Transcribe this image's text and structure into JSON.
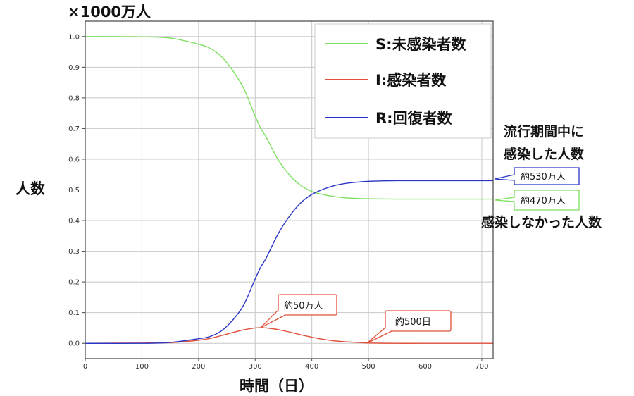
{
  "chart_data": {
    "type": "line",
    "title": "×1000万人",
    "xlabel": "時間（日）",
    "ylabel": "人数",
    "xlim": [
      0,
      720
    ],
    "ylim": [
      -0.05,
      1.05
    ],
    "grid": true,
    "xticks": [
      0,
      100,
      200,
      300,
      400,
      500,
      600,
      700
    ],
    "yticks": [
      0.0,
      0.1,
      0.2,
      0.3,
      0.4,
      0.5,
      0.6,
      0.7,
      0.8,
      0.9,
      1.0
    ],
    "legend_position": "top-right",
    "x": [
      0,
      100,
      150,
      200,
      220,
      240,
      260,
      280,
      300,
      310,
      320,
      340,
      360,
      380,
      400,
      420,
      440,
      460,
      480,
      500,
      550,
      600,
      720
    ],
    "series": [
      {
        "name": "S:未感染者数",
        "color": "#7ee05f",
        "values": [
          1.0,
          0.999,
          0.995,
          0.975,
          0.962,
          0.935,
          0.89,
          0.83,
          0.74,
          0.7,
          0.67,
          0.6,
          0.55,
          0.515,
          0.495,
          0.485,
          0.478,
          0.474,
          0.472,
          0.471,
          0.47,
          0.47,
          0.47
        ]
      },
      {
        "name": "I:感染者数",
        "color": "#e0503a",
        "values": [
          0.0,
          0.001,
          0.002,
          0.01,
          0.016,
          0.025,
          0.035,
          0.044,
          0.05,
          0.051,
          0.05,
          0.045,
          0.037,
          0.028,
          0.02,
          0.013,
          0.008,
          0.005,
          0.003,
          0.001,
          0.0,
          0.0,
          0.0
        ]
      },
      {
        "name": "R:回復者数",
        "color": "#2b36c8",
        "values": [
          0.0,
          0.0,
          0.003,
          0.015,
          0.022,
          0.04,
          0.075,
          0.126,
          0.21,
          0.249,
          0.28,
          0.355,
          0.413,
          0.457,
          0.485,
          0.502,
          0.514,
          0.521,
          0.525,
          0.528,
          0.53,
          0.53,
          0.53
        ]
      }
    ],
    "annotations": [
      {
        "text": "約530万人",
        "x": 720,
        "y": 0.53,
        "color": "#2b36c8"
      },
      {
        "text": "約470万人",
        "x": 720,
        "y": 0.47,
        "color": "#7ee05f"
      },
      {
        "text": "約50万人",
        "x": 310,
        "y": 0.05,
        "color": "#e0503a"
      },
      {
        "text": "約500日",
        "x": 500,
        "y": 0.0,
        "color": "#e0503a"
      }
    ],
    "notes": {
      "infected_line1": "流行期間中に",
      "infected_line2": "感染した人数",
      "not_infected": "感染しなかった人数"
    }
  }
}
